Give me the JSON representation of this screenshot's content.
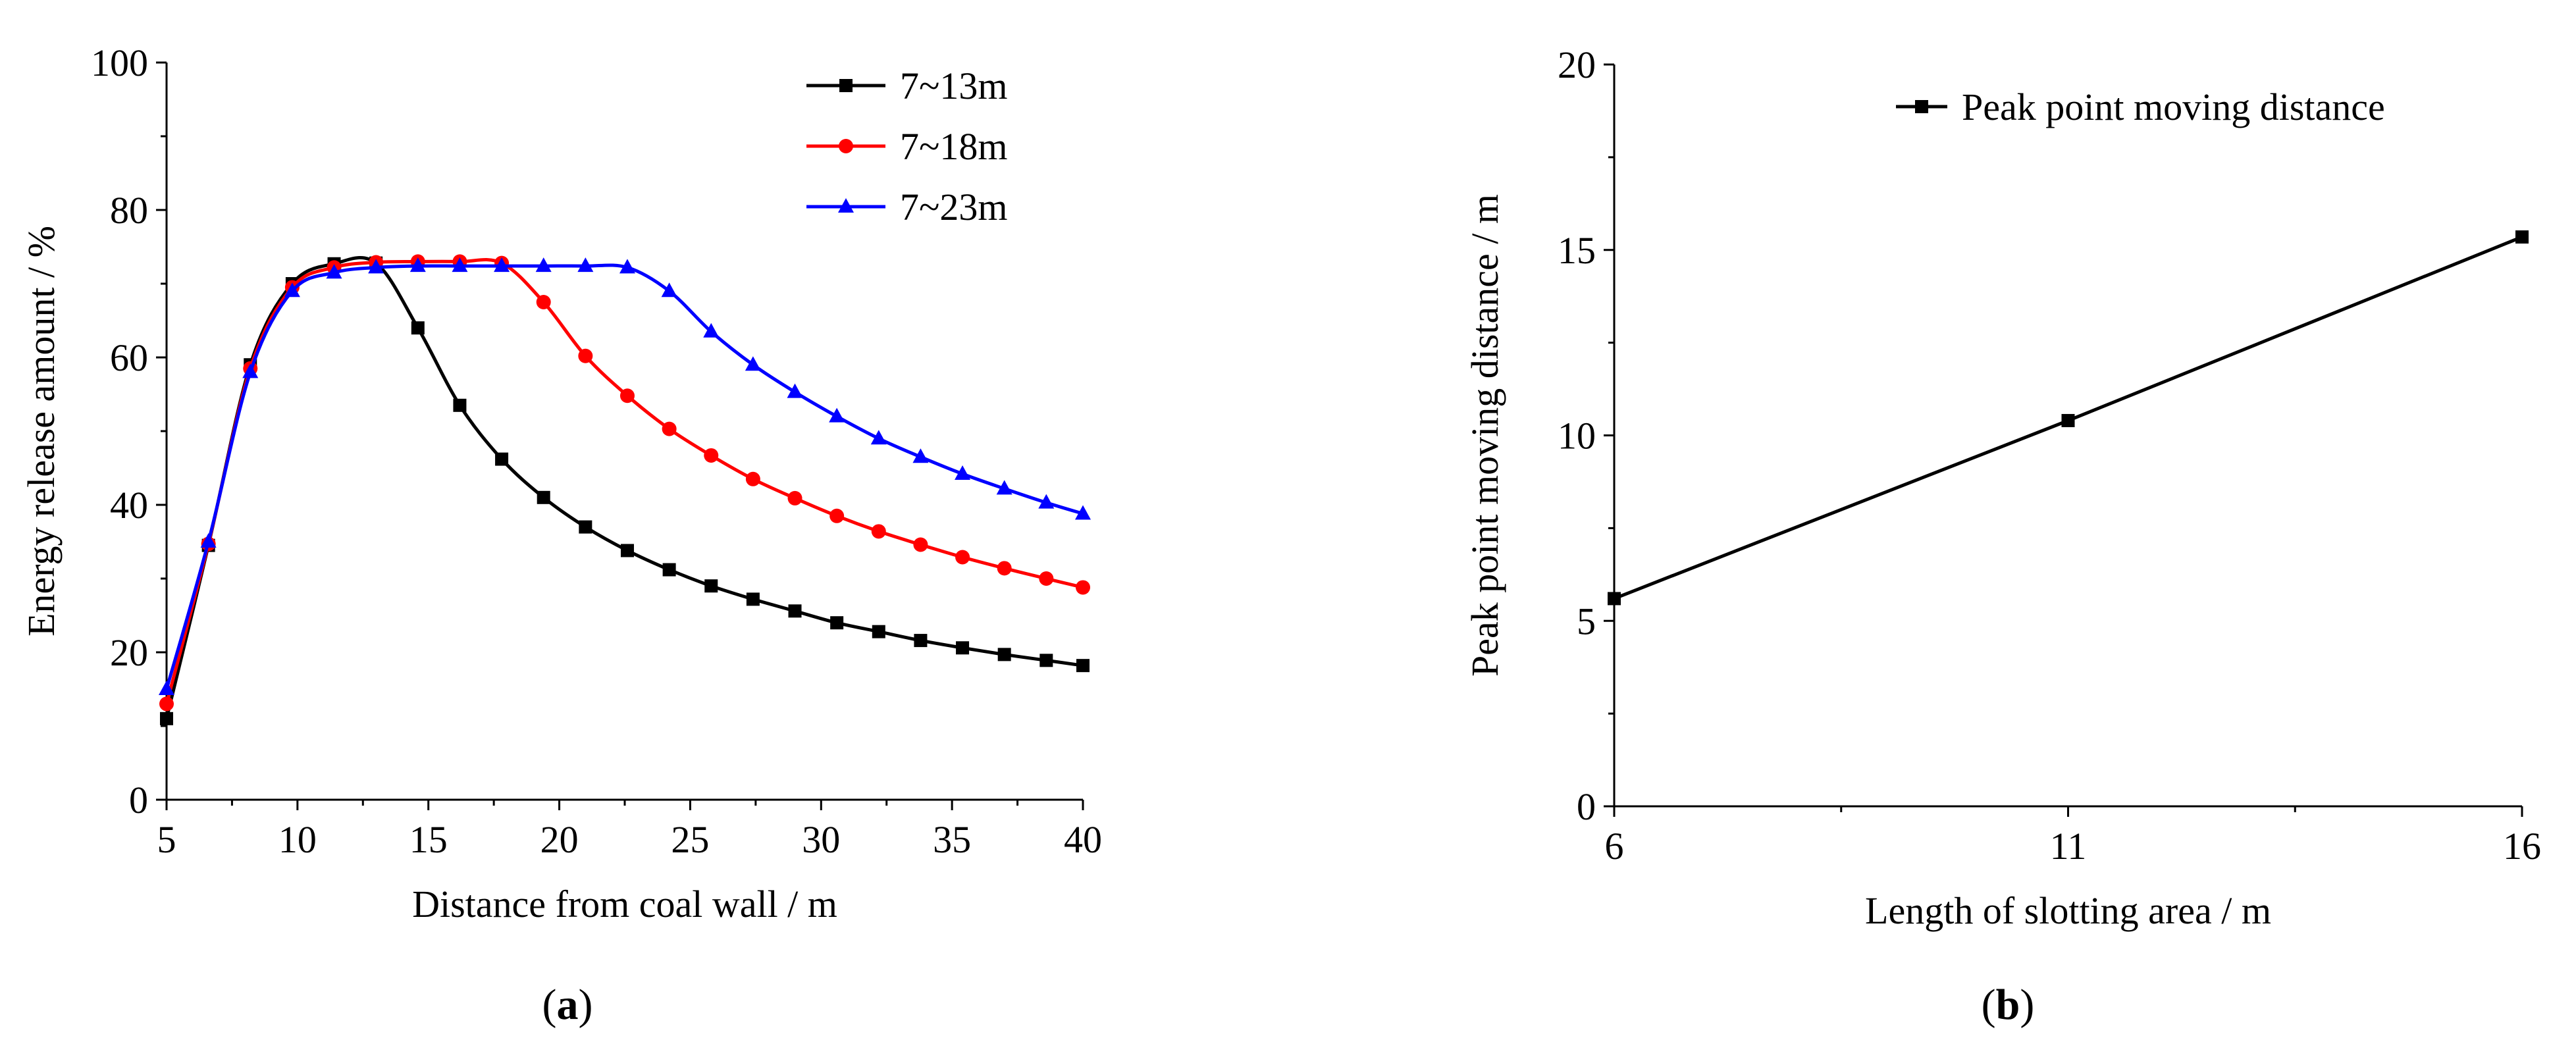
{
  "chart_data": [
    {
      "panel": "a",
      "type": "line",
      "caption_letter": "a",
      "xlabel": "Distance from coal wall / m",
      "ylabel": "Energy release amount / %",
      "xlim": [
        5,
        40
      ],
      "ylim": [
        0,
        100
      ],
      "xticks": [
        5,
        10,
        15,
        20,
        25,
        30,
        35,
        40
      ],
      "yticks": [
        0,
        20,
        40,
        60,
        80,
        100
      ],
      "legend_position": "top-right",
      "series": [
        {
          "name": "7~13m",
          "color": "#000000",
          "marker": "square",
          "x": [
            5,
            6.6,
            8.2,
            9.8,
            11.4,
            13,
            14.6,
            16.2,
            17.8,
            19.4,
            21,
            22.6,
            24.2,
            25.8,
            27.4,
            29,
            30.6,
            32.2,
            33.8,
            35.4,
            37,
            38.6,
            40
          ],
          "y": [
            11,
            34.5,
            59,
            70,
            72.7,
            72.8,
            64,
            53.5,
            46.2,
            41,
            37,
            33.8,
            31.2,
            29,
            27.2,
            25.6,
            24,
            22.8,
            21.6,
            20.6,
            19.7,
            18.9,
            18.2
          ]
        },
        {
          "name": "7~18m",
          "color": "#ff0000",
          "marker": "circle",
          "x": [
            5,
            6.6,
            8.2,
            9.8,
            11.4,
            13,
            14.6,
            16.2,
            17.8,
            19.4,
            21,
            22.6,
            24.2,
            25.8,
            27.4,
            29,
            30.6,
            32.2,
            33.8,
            35.4,
            37,
            38.6,
            40
          ],
          "y": [
            13,
            34.7,
            58.5,
            69.5,
            72.2,
            72.9,
            73,
            73,
            72.8,
            67.5,
            60.2,
            54.8,
            50.3,
            46.7,
            43.5,
            40.9,
            38.5,
            36.4,
            34.6,
            32.9,
            31.4,
            30,
            28.8
          ]
        },
        {
          "name": "7~23m",
          "color": "#0000ff",
          "marker": "triangle",
          "x": [
            5,
            6.6,
            8.2,
            9.8,
            11.4,
            13,
            14.6,
            16.2,
            17.8,
            19.4,
            21,
            22.6,
            24.2,
            25.8,
            27.4,
            29,
            30.6,
            32.2,
            33.8,
            35.4,
            37,
            38.6,
            40
          ],
          "y": [
            15,
            35,
            58,
            69,
            71.5,
            72.2,
            72.4,
            72.4,
            72.4,
            72.4,
            72.4,
            72.2,
            69,
            63.5,
            59,
            55.3,
            52,
            49,
            46.5,
            44.2,
            42.2,
            40.3,
            38.8
          ]
        }
      ]
    },
    {
      "panel": "b",
      "type": "line",
      "caption_letter": "b",
      "xlabel": "Length of slotting area / m",
      "ylabel": "Peak point moving distance / m",
      "xlim": [
        6,
        16
      ],
      "ylim": [
        0,
        20
      ],
      "xticks": [
        6,
        11,
        16
      ],
      "yticks": [
        0,
        5,
        10,
        15,
        20
      ],
      "legend_position": "top-right",
      "series": [
        {
          "name": "Peak point moving distance",
          "color": "#000000",
          "marker": "square",
          "x": [
            6,
            11,
            16
          ],
          "y": [
            5.6,
            10.4,
            15.35
          ]
        }
      ]
    }
  ]
}
